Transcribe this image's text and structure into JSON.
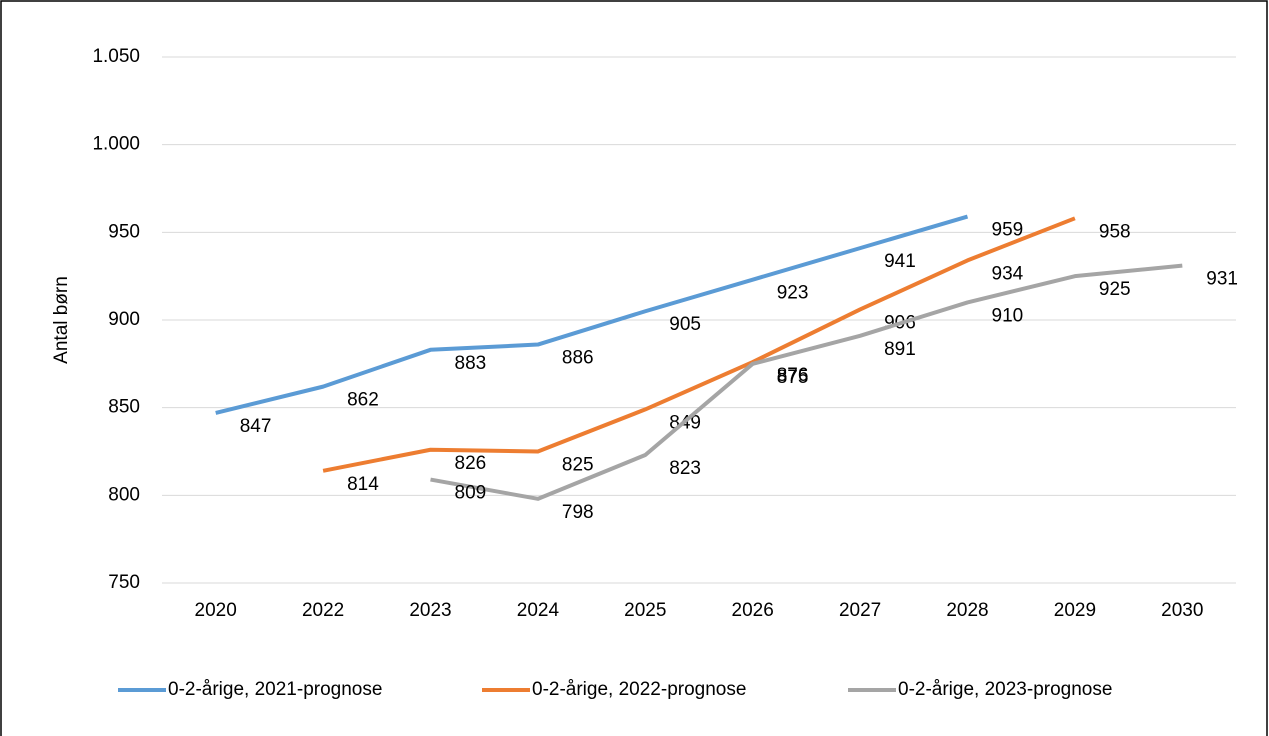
{
  "chart_data": {
    "type": "line",
    "y_label": "Antal børn",
    "categories": [
      "2020",
      "2022",
      "2023",
      "2024",
      "2025",
      "2026",
      "2027",
      "2028",
      "2029",
      "2030"
    ],
    "series": [
      {
        "name": "0-2-årige, 2021-prognose",
        "color": "#5b9bd5",
        "values": [
          847,
          862,
          883,
          886,
          905,
          923,
          941,
          959,
          null,
          null
        ]
      },
      {
        "name": "0-2-årige, 2022-prognose",
        "color": "#ed7d31",
        "values": [
          null,
          814,
          826,
          825,
          849,
          876,
          906,
          934,
          958,
          null
        ]
      },
      {
        "name": "0-2-årige, 2023-prognose",
        "color": "#a5a5a5",
        "values": [
          null,
          null,
          809,
          798,
          823,
          875,
          891,
          910,
          925,
          931
        ]
      }
    ],
    "ylim": [
      750,
      1050
    ],
    "yticks": [
      750,
      800,
      850,
      900,
      950,
      {
        "value": 1000,
        "label": "1.000"
      },
      {
        "value": 1050,
        "label": "1.050"
      }
    ],
    "grid": true,
    "legend": "bottom"
  }
}
